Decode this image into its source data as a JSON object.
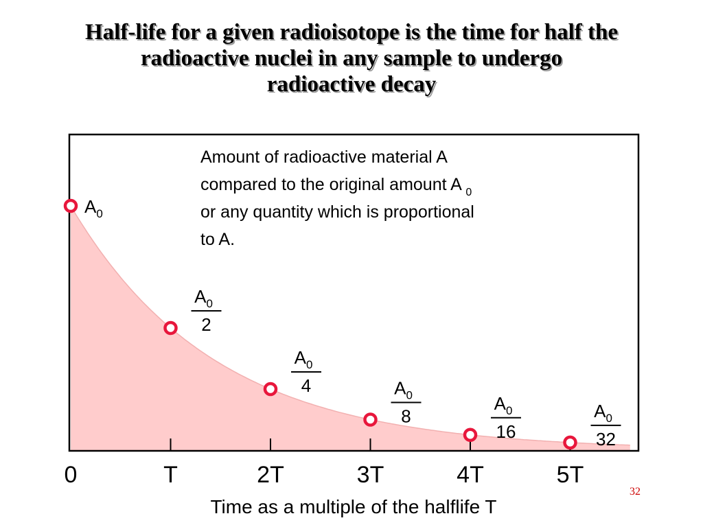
{
  "slide": {
    "title_lines": [
      "Half-life for a given radioisotope is the time for half the",
      "radioactive nuclei in any sample to undergo",
      "radioactive decay"
    ],
    "page_number": "32"
  },
  "chart_data": {
    "type": "scatter",
    "xlabel": "Time as a multiple of the halflife T",
    "ylabel_lines": [
      "Amount of radioactive material A",
      "compared to the original amount A",
      "or any quantity which is proportional",
      "to A."
    ],
    "ylabel_subscript": "0",
    "x_ticks": [
      "0",
      "T",
      "2T",
      "3T",
      "4T",
      "5T"
    ],
    "x": [
      0,
      1,
      2,
      3,
      4,
      5
    ],
    "values": [
      1,
      0.5,
      0.25,
      0.125,
      0.0625,
      0.03125
    ],
    "xlim": [
      0,
      5.6
    ],
    "ylim": [
      0,
      1
    ],
    "point_labels": [
      {
        "numerator": "A",
        "sub": "0",
        "denominator": ""
      },
      {
        "numerator": "A",
        "sub": "0",
        "denominator": "2"
      },
      {
        "numerator": "A",
        "sub": "0",
        "denominator": "4"
      },
      {
        "numerator": "A",
        "sub": "0",
        "denominator": "8"
      },
      {
        "numerator": "A",
        "sub": "0",
        "denominator": "16"
      },
      {
        "numerator": "A",
        "sub": "0",
        "denominator": "32"
      }
    ],
    "colors": {
      "fill": "#ffcccc",
      "marker": "#e8173c",
      "frame": "#000000"
    }
  }
}
